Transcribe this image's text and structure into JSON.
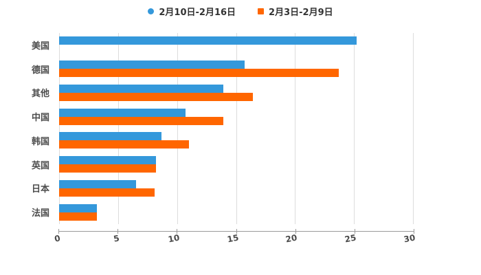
{
  "chart": {
    "background": "#ffffff",
    "axis_color": "#999999",
    "gridline_color": "#dcdcdc",
    "tick_label_color": "#4a4a4a",
    "category_label_color": "#4d4d4d",
    "legend": {
      "items": [
        {
          "label": "2月10日-2月16日",
          "marker": "circle-icon",
          "color": "#3498db"
        },
        {
          "label": "2月3日-2月9日",
          "marker": "square-icon",
          "color": "#ff6600"
        }
      ]
    }
  },
  "chart_data": {
    "type": "bar",
    "orientation": "horizontal",
    "title": "",
    "xlabel": "",
    "ylabel": "",
    "categories": [
      "美国",
      "德国",
      "其他",
      "中国",
      "韩国",
      "英国",
      "日本",
      "法国"
    ],
    "series": [
      {
        "name": "2月10日-2月16日",
        "color": "#3498db",
        "values": [
          25.2,
          15.7,
          13.9,
          10.7,
          8.7,
          8.2,
          6.5,
          3.2
        ]
      },
      {
        "name": "2月3日-2月9日",
        "color": "#ff6600",
        "values": [
          0,
          23.7,
          16.4,
          13.9,
          11.0,
          8.2,
          8.1,
          3.2
        ]
      }
    ],
    "xlim": [
      0,
      30
    ],
    "xticks": [
      0,
      5,
      10,
      15,
      20,
      25,
      30
    ],
    "grid": true,
    "legend_position": "top-center"
  }
}
